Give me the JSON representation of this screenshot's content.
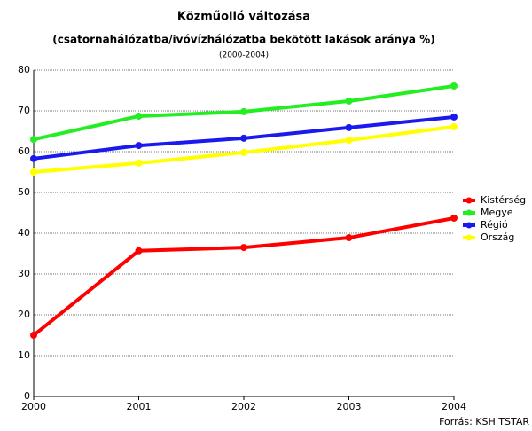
{
  "chart_data": {
    "type": "line",
    "title": "Közműolló változása",
    "subtitle": "(csatornahálózatba/ivóvízhálózatba bekötött lakások aránya %)",
    "period": "(2000-2004)",
    "source": "Forrás: KSH TSTAR",
    "x": [
      2000,
      2001,
      2002,
      2003,
      2004
    ],
    "xlim": [
      2000,
      2004
    ],
    "xticks": [
      2000,
      2001,
      2002,
      2003,
      2004
    ],
    "ylim": [
      0,
      80
    ],
    "yticks": [
      0,
      10,
      20,
      30,
      40,
      50,
      60,
      70,
      80
    ],
    "grid": true,
    "legend": "right",
    "series": [
      {
        "name": "Kistérség",
        "color": "#ff0000",
        "values": [
          15.0,
          35.7,
          36.5,
          38.9,
          43.7
        ]
      },
      {
        "name": "Megye",
        "color": "#22ee22",
        "values": [
          63.0,
          68.7,
          69.8,
          72.4,
          76.1
        ]
      },
      {
        "name": "Régió",
        "color": "#1a1aee",
        "values": [
          58.3,
          61.5,
          63.3,
          65.9,
          68.5
        ]
      },
      {
        "name": "Ország",
        "color": "#ffff00",
        "values": [
          55.0,
          57.2,
          59.8,
          62.8,
          66.1
        ]
      }
    ]
  }
}
